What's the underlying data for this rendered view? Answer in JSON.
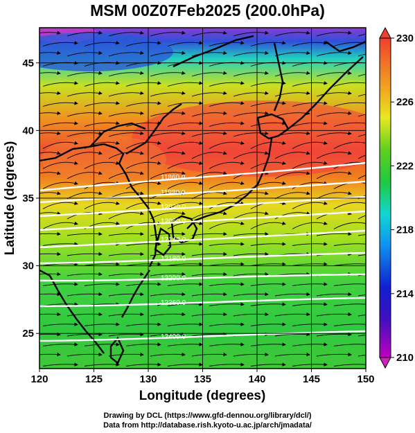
{
  "title": "MSM 00Z07Feb2025 (200.0hPa)",
  "xaxis": {
    "label": "Longitude (degrees)",
    "ticks": [
      "120",
      "125",
      "130",
      "135",
      "140",
      "145",
      "150"
    ],
    "range": [
      120,
      150
    ]
  },
  "yaxis": {
    "label": "Latitude  (degrees)",
    "ticks": [
      "25",
      "30",
      "35",
      "40",
      "45"
    ],
    "range": [
      22.4,
      47.6
    ]
  },
  "colorbar": {
    "ticks": [
      "230",
      "226",
      "222",
      "218",
      "214",
      "210"
    ],
    "range": [
      210,
      230
    ]
  },
  "contour_labels": [
    "11860.0",
    "11980.0",
    "12020.0",
    "12060.0",
    "12140.0",
    "12180.0",
    "12200.0",
    "12360.0",
    "12400.0"
  ],
  "credits": {
    "line1": "Drawing by DCL (https://www.gfd-dennou.org/library/dcl/)",
    "line2": "Data from http://database.rish.kyoto-u.ac.jp/arch/jmadata/"
  },
  "colors": {
    "temp_210": "#e040c8",
    "temp_214": "#2020c0",
    "temp_218": "#10c8f0",
    "temp_222": "#20c840",
    "temp_226": "#f0e000",
    "temp_230": "#f04840",
    "contour": "#ffffff",
    "streamline": "#000000"
  }
}
